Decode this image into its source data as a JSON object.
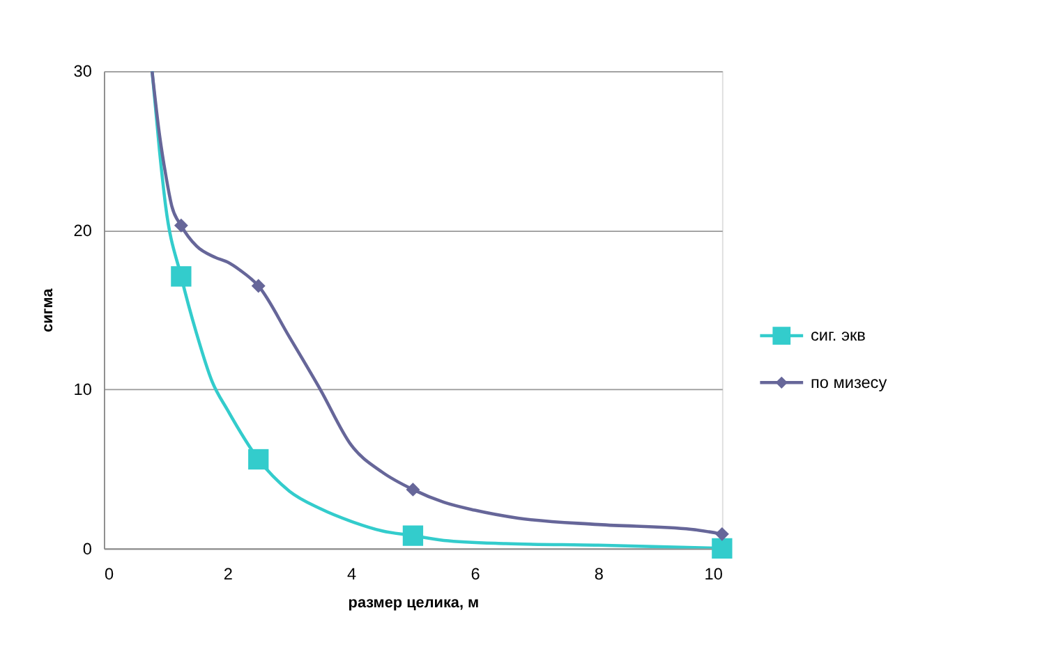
{
  "chart_data": {
    "type": "line",
    "xlabel": "размер целика, м",
    "ylabel": "сигма",
    "xlim": [
      0,
      10
    ],
    "ylim": [
      0,
      30
    ],
    "xticks": [
      0,
      2,
      4,
      6,
      8,
      10
    ],
    "yticks": [
      0,
      10,
      20,
      30
    ],
    "grid": "y",
    "legend": "right",
    "series": [
      {
        "name": "сиг. экв",
        "color": "#33cccc",
        "marker": "none",
        "x": [
          0.78,
          0.9,
          1.0,
          1.25,
          1.5,
          1.75,
          2.0,
          2.5,
          3.0,
          3.5,
          4.0,
          4.5,
          5.0,
          5.5,
          6.5,
          8.0,
          10.0
        ],
        "values": [
          30,
          25,
          21.5,
          17.1,
          13.5,
          10.5,
          8.7,
          5.6,
          3.6,
          2.5,
          1.7,
          1.1,
          0.8,
          0.5,
          0.3,
          0.2,
          0
        ]
      },
      {
        "type": "scatter",
        "color": "#33cccc",
        "marker": "square",
        "x": [
          1.25,
          2.5,
          5,
          10
        ],
        "values": [
          17.1,
          5.6,
          0.8,
          0
        ]
      },
      {
        "name": "по мизесу",
        "color": "#666699",
        "marker": "none",
        "x": [
          0.78,
          0.9,
          1.0,
          1.1,
          1.25,
          1.5,
          1.8,
          2.0,
          2.2,
          2.5,
          3.0,
          3.5,
          4.0,
          4.5,
          5.0,
          5.5,
          6.0,
          6.7,
          8.0,
          9.5,
          10.0
        ],
        "values": [
          30,
          26,
          23.5,
          21.5,
          20.3,
          19,
          18.3,
          18,
          17.5,
          16.5,
          13.3,
          10,
          6.5,
          4.8,
          3.7,
          2.9,
          2.4,
          1.9,
          1.5,
          1.2,
          0.9
        ]
      },
      {
        "type": "scatter",
        "color": "#666699",
        "marker": "diamond",
        "x": [
          1.25,
          2.5,
          5,
          10
        ],
        "values": [
          20.3,
          16.5,
          3.7,
          0.9
        ]
      }
    ]
  }
}
